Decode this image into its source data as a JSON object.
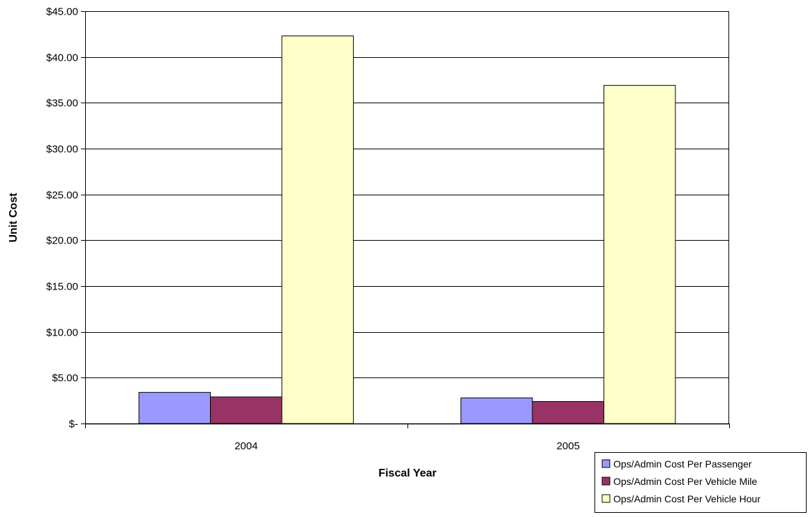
{
  "chart_data": {
    "type": "bar",
    "title": "",
    "xlabel": "Fiscal Year",
    "ylabel": "Unit Cost",
    "categories": [
      "2004",
      "2005"
    ],
    "series": [
      {
        "name": "Ops/Admin Cost Per Passenger",
        "color": "#9999ff",
        "values": [
          3.4,
          2.8
        ]
      },
      {
        "name": "Ops/Admin Cost Per Vehicle Mile",
        "color": "#993366",
        "values": [
          2.9,
          2.4
        ]
      },
      {
        "name": "Ops/Admin Cost Per Vehicle Hour",
        "color": "#ffffcc",
        "values": [
          42.3,
          36.9
        ]
      }
    ],
    "ylim": [
      0,
      45
    ],
    "yticks": [
      {
        "value": 0,
        "label": "$-"
      },
      {
        "value": 5,
        "label": "$5.00"
      },
      {
        "value": 10,
        "label": "$10.00"
      },
      {
        "value": 15,
        "label": "$15.00"
      },
      {
        "value": 20,
        "label": "$20.00"
      },
      {
        "value": 25,
        "label": "$25.00"
      },
      {
        "value": 30,
        "label": "$30.00"
      },
      {
        "value": 35,
        "label": "$35.00"
      },
      {
        "value": 40,
        "label": "$40.00"
      },
      {
        "value": 45,
        "label": "$45.00"
      }
    ],
    "grid": true,
    "legend_position": "bottom-right"
  }
}
